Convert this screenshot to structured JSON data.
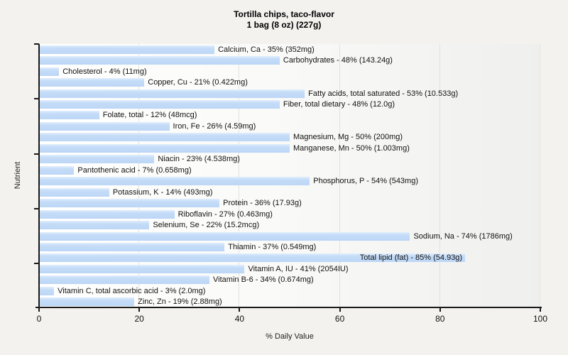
{
  "title": {
    "line1": "Tortilla chips, taco-flavor",
    "line2": "1 bag (8 oz) (227g)"
  },
  "chart_data": {
    "type": "bar",
    "orientation": "horizontal",
    "title": "Tortilla chips, taco-flavor",
    "subtitle": "1 bag (8 oz) (227g)",
    "xlabel": "% Daily Value",
    "ylabel": "Nutrient",
    "xlim": [
      0,
      100
    ],
    "xticks": [
      0,
      20,
      40,
      60,
      80,
      100
    ],
    "grid": true,
    "legend": false,
    "bar_color": "#bcd6f6",
    "items": [
      {
        "name": "Calcium, Ca",
        "pct": 35,
        "amount": "352mg",
        "label": "Calcium, Ca - 35% (352mg)"
      },
      {
        "name": "Carbohydrates",
        "pct": 48,
        "amount": "143.24g",
        "label": "Carbohydrates - 48% (143.24g)"
      },
      {
        "name": "Cholesterol",
        "pct": 4,
        "amount": "11mg",
        "label": "Cholesterol - 4% (11mg)"
      },
      {
        "name": "Copper, Cu",
        "pct": 21,
        "amount": "0.422mg",
        "label": "Copper, Cu - 21% (0.422mg)"
      },
      {
        "name": "Fatty acids, total saturated",
        "pct": 53,
        "amount": "10.533g",
        "label": "Fatty acids, total saturated - 53% (10.533g)"
      },
      {
        "name": "Fiber, total dietary",
        "pct": 48,
        "amount": "12.0g",
        "label": "Fiber, total dietary - 48% (12.0g)"
      },
      {
        "name": "Folate, total",
        "pct": 12,
        "amount": "48mcg",
        "label": "Folate, total - 12% (48mcg)"
      },
      {
        "name": "Iron, Fe",
        "pct": 26,
        "amount": "4.59mg",
        "label": "Iron, Fe - 26% (4.59mg)"
      },
      {
        "name": "Magnesium, Mg",
        "pct": 50,
        "amount": "200mg",
        "label": "Magnesium, Mg - 50% (200mg)"
      },
      {
        "name": "Manganese, Mn",
        "pct": 50,
        "amount": "1.003mg",
        "label": "Manganese, Mn - 50% (1.003mg)"
      },
      {
        "name": "Niacin",
        "pct": 23,
        "amount": "4.538mg",
        "label": "Niacin - 23% (4.538mg)"
      },
      {
        "name": "Pantothenic acid",
        "pct": 7,
        "amount": "0.658mg",
        "label": "Pantothenic acid - 7% (0.658mg)"
      },
      {
        "name": "Phosphorus, P",
        "pct": 54,
        "amount": "543mg",
        "label": "Phosphorus, P - 54% (543mg)"
      },
      {
        "name": "Potassium, K",
        "pct": 14,
        "amount": "493mg",
        "label": "Potassium, K - 14% (493mg)"
      },
      {
        "name": "Protein",
        "pct": 36,
        "amount": "17.93g",
        "label": "Protein - 36% (17.93g)"
      },
      {
        "name": "Riboflavin",
        "pct": 27,
        "amount": "0.463mg",
        "label": "Riboflavin - 27% (0.463mg)"
      },
      {
        "name": "Selenium, Se",
        "pct": 22,
        "amount": "15.2mcg",
        "label": "Selenium, Se - 22% (15.2mcg)"
      },
      {
        "name": "Sodium, Na",
        "pct": 74,
        "amount": "1786mg",
        "label": "Sodium, Na - 74% (1786mg)"
      },
      {
        "name": "Thiamin",
        "pct": 37,
        "amount": "0.549mg",
        "label": "Thiamin - 37% (0.549mg)"
      },
      {
        "name": "Total lipid (fat)",
        "pct": 85,
        "amount": "54.93g",
        "label": "Total lipid (fat) - 85% (54.93g)",
        "label_inside": true
      },
      {
        "name": "Vitamin A, IU",
        "pct": 41,
        "amount": "2054IU",
        "label": "Vitamin A, IU - 41% (2054IU)"
      },
      {
        "name": "Vitamin B-6",
        "pct": 34,
        "amount": "0.674mg",
        "label": "Vitamin B-6 - 34% (0.674mg)"
      },
      {
        "name": "Vitamin C, total ascorbic acid",
        "pct": 3,
        "amount": "2.0mg",
        "label": "Vitamin C, total ascorbic acid - 3% (2.0mg)"
      },
      {
        "name": "Zinc, Zn",
        "pct": 19,
        "amount": "2.88mg",
        "label": "Zinc, Zn - 19% (2.88mg)"
      }
    ]
  }
}
